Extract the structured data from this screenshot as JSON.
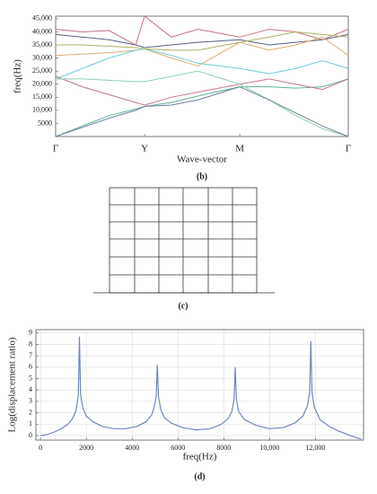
{
  "chart_data": [
    {
      "type": "line",
      "caption": "(b)",
      "x_label": "Wave-vector",
      "y_label": "freq(Hz)",
      "xlim": [
        0,
        3.29
      ],
      "ylim": [
        0,
        46000
      ],
      "grid": false,
      "xticks": [
        {
          "value": 0,
          "label": "Γ"
        },
        {
          "value": 1,
          "label": "Y"
        },
        {
          "value": 2.07,
          "label": "M"
        },
        {
          "value": 3.29,
          "label": "Γ"
        }
      ],
      "yticks": [
        5000,
        {
          "value": 10000,
          "label": "10,000"
        },
        {
          "value": 15000,
          "label": "15,000"
        },
        {
          "value": 20000,
          "label": "20,000"
        },
        {
          "value": 25000,
          "label": "25,000"
        },
        {
          "value": 30000,
          "label": "30,000"
        },
        {
          "value": 35000,
          "label": "35,000"
        },
        {
          "value": 40000,
          "label": "40,000"
        },
        {
          "value": 45000,
          "label": "45,000"
        }
      ],
      "x": [
        0,
        0.3,
        0.6,
        0.9,
        1,
        1.3,
        1.6,
        2.07,
        2.4,
        2.7,
        3.0,
        3.29
      ],
      "series": [
        {
          "color": "#56627e",
          "values": [
            39000,
            38000,
            37000,
            35000,
            34000,
            35000,
            36000,
            37000,
            35000,
            36000,
            37000,
            39000
          ]
        },
        {
          "color": "#c07080",
          "values": [
            41000,
            40000,
            40500,
            35000,
            46000,
            38000,
            41000,
            38000,
            41000,
            40000,
            37000,
            41000
          ]
        },
        {
          "color": "#d8b070",
          "values": [
            31000,
            31500,
            32000,
            33000,
            33500,
            30000,
            27000,
            36000,
            33000,
            35000,
            38000,
            31000
          ]
        },
        {
          "color": "#70c8d8",
          "values": [
            22000,
            26000,
            30000,
            33000,
            33500,
            31000,
            28000,
            26000,
            24000,
            26000,
            29000,
            26000
          ]
        },
        {
          "color": "#5fb49a",
          "values": [
            0,
            4000,
            8000,
            10500,
            11500,
            13000,
            15500,
            19000,
            19000,
            18500,
            19000,
            22000
          ]
        },
        {
          "color": "#c07888",
          "values": [
            23000,
            19000,
            16000,
            13000,
            12000,
            15000,
            17000,
            20000,
            22000,
            20000,
            18000,
            22000
          ]
        },
        {
          "color": "#90d0b0",
          "values": [
            22000,
            22000,
            21500,
            21000,
            21000,
            23000,
            25000,
            20000,
            14000,
            8000,
            3000,
            0
          ]
        },
        {
          "color": "#7080a0",
          "values": [
            0,
            3500,
            7000,
            10000,
            11500,
            12000,
            14000,
            19000,
            14000,
            9000,
            4000,
            0
          ]
        },
        {
          "color": "#b0b060",
          "values": [
            35000,
            35000,
            34500,
            34000,
            33500,
            33000,
            33000,
            36000,
            38000,
            40000,
            39000,
            38000
          ]
        }
      ]
    },
    {
      "type": "line",
      "caption": "(d)",
      "x_label": "freq(Hz)",
      "y_label": "Log(displacement ratio)",
      "xlim": [
        -200,
        14100
      ],
      "ylim": [
        -0.4,
        9.3
      ],
      "grid": true,
      "xticks": [
        0,
        2000,
        4000,
        6000,
        8000,
        {
          "value": 10000,
          "label": "10,000"
        },
        {
          "value": 12000,
          "label": "12,000"
        }
      ],
      "yticks": [
        0,
        1,
        2,
        3,
        4,
        5,
        6,
        7,
        8,
        9
      ],
      "x": [
        0,
        300,
        600,
        900,
        1200,
        1400,
        1550,
        1650,
        1700,
        1750,
        1850,
        2000,
        2300,
        2700,
        3200,
        3700,
        4200,
        4600,
        4850,
        4950,
        5050,
        5100,
        5150,
        5250,
        5400,
        5700,
        6200,
        6800,
        7400,
        7900,
        8200,
        8350,
        8450,
        8500,
        8550,
        8650,
        8900,
        9400,
        10000,
        10600,
        11100,
        11450,
        11650,
        11750,
        11800,
        11850,
        11950,
        12200,
        12600,
        13000,
        13400,
        13800,
        14000
      ],
      "series": [
        {
          "color": "#6f86c2",
          "values": [
            0,
            0.1,
            0.3,
            0.6,
            1.0,
            1.5,
            2.2,
            3.5,
            8.7,
            3.6,
            2.4,
            1.7,
            1.2,
            0.8,
            0.6,
            0.6,
            0.8,
            1.2,
            1.8,
            2.4,
            3.4,
            6.2,
            3.4,
            2.3,
            1.6,
            1.1,
            0.7,
            0.5,
            0.6,
            1.0,
            1.5,
            2.1,
            3.2,
            6.0,
            3.2,
            2.1,
            1.4,
            0.9,
            0.6,
            0.7,
            1.1,
            1.7,
            2.6,
            3.8,
            8.3,
            3.8,
            2.5,
            1.4,
            0.8,
            0.4,
            0.1,
            -0.2,
            -0.3
          ]
        }
      ]
    }
  ],
  "diagram": {
    "caption": "(c)"
  }
}
